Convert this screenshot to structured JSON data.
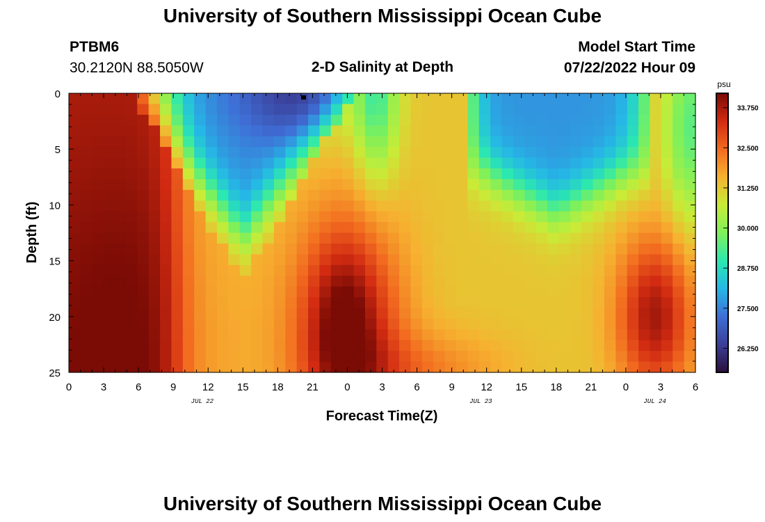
{
  "header": {
    "title": "University of Southern Mississippi Ocean Cube",
    "station": "PTBM6",
    "coords": "30.2120N  88.5050W",
    "subtitle": "2-D Salinity at Depth",
    "model_start_label": "Model Start Time",
    "model_start_value": "07/22/2022 Hour 09"
  },
  "footer": {
    "title": "University of Southern Mississippi Ocean Cube"
  },
  "colors": {
    "colormap": [
      "#2b0f3b",
      "#3b3f98",
      "#3f6fd6",
      "#25b7e6",
      "#2be8b0",
      "#7ff05a",
      "#c8ec37",
      "#f6b130",
      "#f26a1f",
      "#d22b12",
      "#7a0b05"
    ]
  },
  "chart_data": {
    "type": "heatmap",
    "title": "2-D Salinity at Depth",
    "xlabel": "Forecast Time(Z)",
    "ylabel": "Depth (ft)",
    "x_hours_range": [
      0,
      54
    ],
    "xticks": [
      "0",
      "3",
      "6",
      "9",
      "12",
      "15",
      "18",
      "21",
      "0",
      "3",
      "6",
      "9",
      "12",
      "15",
      "18",
      "21",
      "0",
      "3",
      "6"
    ],
    "date_labels": [
      {
        "text": "JUL 22",
        "hour": 11.5
      },
      {
        "text": "JUL 23",
        "hour": 35.5
      },
      {
        "text": "JUL 24",
        "hour": 50.5
      }
    ],
    "ylim": [
      0,
      25
    ],
    "yticks": [
      0,
      5,
      10,
      15,
      20,
      25
    ],
    "colorbar": {
      "unit": "psu",
      "range": [
        25.5,
        34.2
      ],
      "ticks": [
        "33.750",
        "32.500",
        "31.250",
        "30.000",
        "28.750",
        "27.500",
        "26.250"
      ]
    },
    "grid_size": {
      "cols": 55,
      "rows": 26
    },
    "field_summary": [
      {
        "region": "hours 0-10, all depths",
        "salinity_psu": "32.5-34.0"
      },
      {
        "region": "hours 10-20, depth 0-12 ft",
        "salinity_psu": "26.5-29.0"
      },
      {
        "region": "hours 19-25, depth 15-25 ft",
        "salinity_psu": "33.8-34.2"
      },
      {
        "region": "hours 26-34, all depths",
        "salinity_psu": "31.5-32.5"
      },
      {
        "region": "hours 35-50, depth 0-8 ft",
        "salinity_psu": "27.5-28.5"
      },
      {
        "region": "hours 47-53, depth 13-24 ft",
        "salinity_psu": "33.0-34.0"
      }
    ]
  }
}
